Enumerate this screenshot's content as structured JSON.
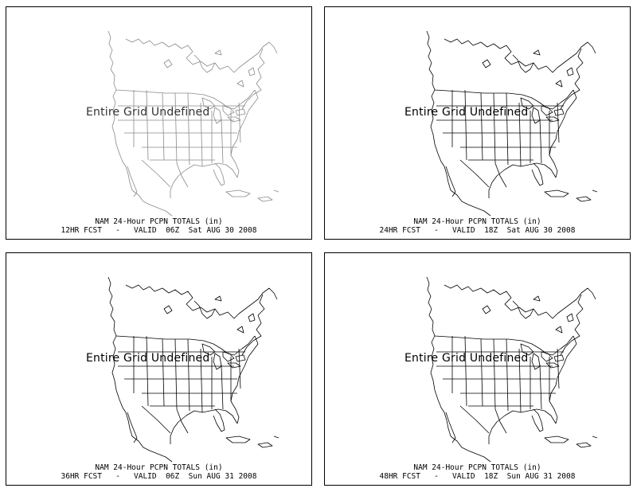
{
  "panels": [
    {
      "message": "Entire Grid Undefined",
      "title": "NAM 24-Hour PCPN TOTALS (in)",
      "valid": "12HR FCST   -   VALID  06Z  Sat AUG 30 2008"
    },
    {
      "message": "Entire Grid Undefined",
      "title": "NAM 24-Hour PCPN TOTALS (in)",
      "valid": "24HR FCST   -   VALID  18Z  Sat AUG 30 2008"
    },
    {
      "message": "Entire Grid Undefined",
      "title": "NAM 24-Hour PCPN TOTALS (in)",
      "valid": "36HR FCST   -   VALID  06Z  Sun AUG 31 2008"
    },
    {
      "message": "Entire Grid Undefined",
      "title": "NAM 24-Hour PCPN TOTALS (in)",
      "valid": "48HR FCST   -   VALID  18Z  Sun AUG 31 2008"
    }
  ]
}
